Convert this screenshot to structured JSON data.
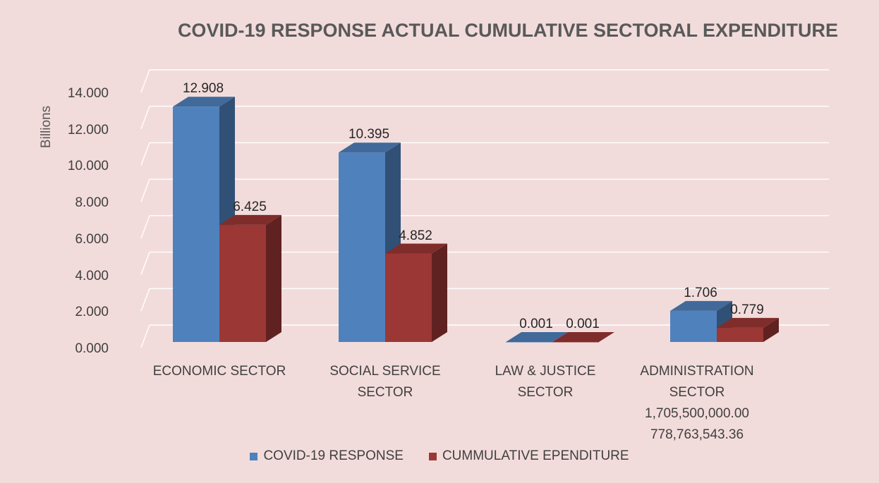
{
  "chart_data": {
    "type": "bar",
    "title": "COVID-19 RESPONSE ACTUAL CUMULATIVE SECTORAL EXPENDITURE",
    "ylabel": "Billions",
    "xlabel": "",
    "ylim": [
      0,
      14
    ],
    "yticks": [
      "0.000",
      "2.000",
      "4.000",
      "6.000",
      "8.000",
      "10.000",
      "12.000",
      "14.000"
    ],
    "categories": [
      [
        "ECONOMIC SECTOR"
      ],
      [
        "SOCIAL SERVICE",
        "SECTOR"
      ],
      [
        "LAW & JUSTICE",
        "SECTOR"
      ],
      [
        "ADMINISTRATION",
        "SECTOR"
      ]
    ],
    "category_sublabels": [
      "1,705,500,000.00",
      "778,763,543.36"
    ],
    "series": [
      {
        "name": "COVID-19 RESPONSE",
        "color": "#4f81bd",
        "values": [
          12.908,
          10.395,
          0.001,
          1.706
        ],
        "labels": [
          "12.908",
          "10.395",
          "0.001",
          "1.706"
        ]
      },
      {
        "name": "CUMMULATIVE EPENDITURE",
        "color": "#9b3735",
        "values": [
          6.425,
          4.852,
          0.001,
          0.779
        ],
        "labels": [
          "6.425",
          "4.852",
          "0.001",
          "0.779"
        ]
      }
    ],
    "grid": true,
    "legend": "bottom",
    "style": "3d-clustered-column"
  }
}
